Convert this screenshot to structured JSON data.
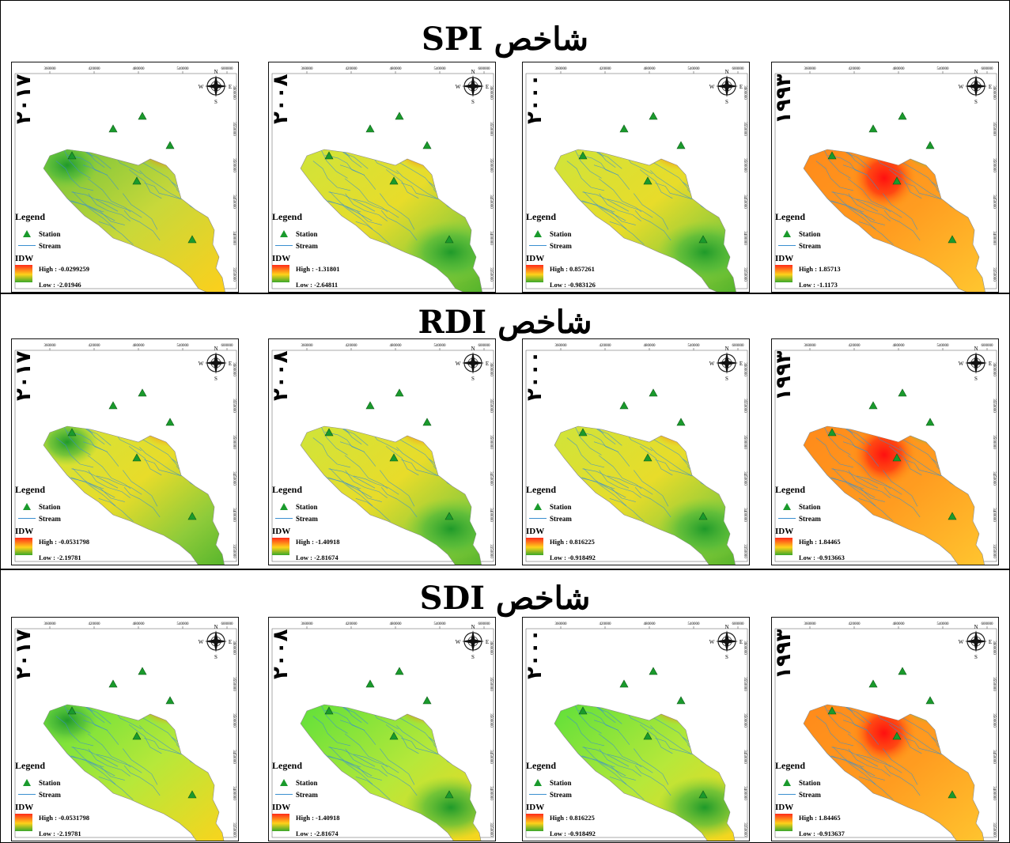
{
  "sections": [
    {
      "title": "شاخص SPI",
      "panels": [
        {
          "year": "۲۰۱۷",
          "high": "High : -0.0299259",
          "low": "Low : -2.01946",
          "scheme": "green-red"
        },
        {
          "year": "۲۰۰۸",
          "high": "High : -1.31801",
          "low": "Low : -2.64811",
          "scheme": "green-red"
        },
        {
          "year": "۲۰۰۰",
          "high": "High : 0.857261",
          "low": "Low : -0.983126",
          "scheme": "green-red"
        },
        {
          "year": "۱۹۹۳",
          "high": "High : 1.85713",
          "low": "Low : -1.1173",
          "scheme": "orange-green"
        }
      ]
    },
    {
      "title": "شاخص RDI",
      "panels": [
        {
          "year": "۲۰۱۷",
          "high": "High : -0.0531798",
          "low": "Low : -2.19781",
          "scheme": "green-red"
        },
        {
          "year": "۲۰۰۸",
          "high": "High : -1.40918",
          "low": "Low : -2.81674",
          "scheme": "green-red"
        },
        {
          "year": "۲۰۰۰",
          "high": "High : 0.816225",
          "low": "Low : -0.918492",
          "scheme": "green-red"
        },
        {
          "year": "۱۹۹۳",
          "high": "High : 1.84465",
          "low": "Low : -0.913663",
          "scheme": "orange-green"
        }
      ]
    },
    {
      "title": "شاخص SDI",
      "panels": [
        {
          "year": "۲۰۱۷",
          "high": "High : -0.0531798",
          "low": "Low : -2.19781",
          "scheme": "lime-red"
        },
        {
          "year": "۲۰۰۸",
          "high": "High : -1.40918",
          "low": "Low : -2.81674",
          "scheme": "lime-red"
        },
        {
          "year": "۲۰۰۰",
          "high": "High : 0.816225",
          "low": "Low : -0.918492",
          "scheme": "lime-red"
        },
        {
          "year": "۱۹۹۳",
          "high": "High : 1.84465",
          "low": "Low : -0.913637",
          "scheme": "orange-green"
        }
      ]
    }
  ],
  "legend": {
    "title": "Legend",
    "station": "Station",
    "stream": "Stream",
    "idw": "IDW"
  },
  "compass": {
    "n": "N",
    "s": "S",
    "e": "E",
    "w": "W"
  },
  "x_ticks": [
    "360000",
    "420000",
    "480000",
    "540000",
    "600000"
  ],
  "y_ticks": [
    "3600000",
    "3550000",
    "3500000",
    "3450000",
    "3400000",
    "3350000"
  ],
  "colors": {
    "high": "#ff2a1a",
    "mid": "#ffd21a",
    "low": "#3aa82a",
    "stream": "#3a8fd0",
    "station": "#1a9a2c"
  }
}
